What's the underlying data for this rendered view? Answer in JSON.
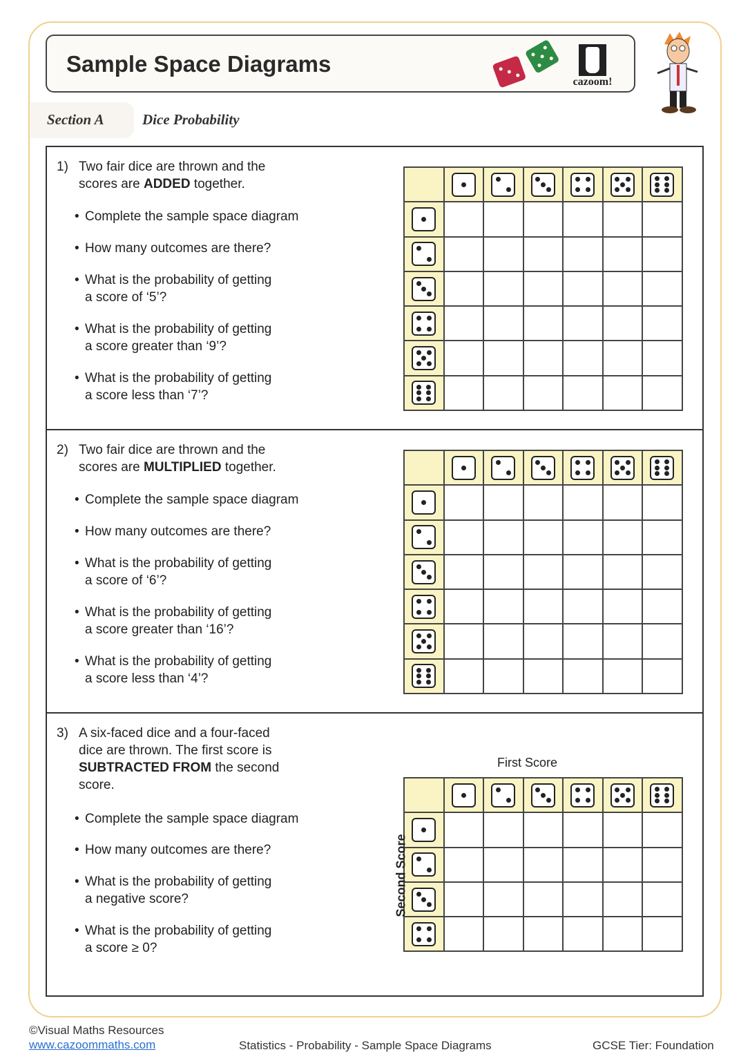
{
  "header": {
    "title": "Sample Space Diagrams",
    "logo_text": "cazoom!",
    "section_label": "Section A",
    "section_title": "Dice Probability"
  },
  "questions": [
    {
      "number": "1)",
      "lines": [
        [
          "Two fair dice are thrown and the",
          "",
          ""
        ],
        [
          "scores are ",
          "ADDED",
          " together."
        ]
      ],
      "bullets": [
        [
          "Complete the sample space diagram",
          ""
        ],
        [
          "How many outcomes are there?",
          ""
        ],
        [
          "What is the probability of getting",
          "a score of ‘5’?"
        ],
        [
          "What is the probability of getting",
          "a score greater than ‘9’?"
        ],
        [
          "What is the probability of getting",
          "a score less than ‘7’?"
        ]
      ],
      "columns": [
        1,
        2,
        3,
        4,
        5,
        6
      ],
      "rows": [
        1,
        2,
        3,
        4,
        5,
        6
      ]
    },
    {
      "number": "2)",
      "lines": [
        [
          "Two fair dice are thrown and the",
          "",
          ""
        ],
        [
          "scores are ",
          "MULTIPLIED",
          " together."
        ]
      ],
      "bullets": [
        [
          "Complete the sample space diagram",
          ""
        ],
        [
          "How many outcomes are there?",
          ""
        ],
        [
          "What is the probability of getting",
          "a score of ‘6’?"
        ],
        [
          "What is the probability of getting",
          "a score greater than ‘16’?"
        ],
        [
          "What is the probability of getting",
          "a score less than ‘4’?"
        ]
      ],
      "columns": [
        1,
        2,
        3,
        4,
        5,
        6
      ],
      "rows": [
        1,
        2,
        3,
        4,
        5,
        6
      ]
    },
    {
      "number": "3)",
      "lines": [
        [
          "A six-faced dice and a four-faced",
          "",
          ""
        ],
        [
          "dice are thrown. The first score is",
          "",
          ""
        ],
        [
          "",
          "SUBTRACTED FROM",
          " the second"
        ],
        [
          "score.",
          "",
          ""
        ]
      ],
      "bullets": [
        [
          "Complete the sample space diagram",
          ""
        ],
        [
          "How many outcomes are there?",
          ""
        ],
        [
          "What is the probability of getting",
          "a negative score?"
        ],
        [
          "What is the probability of getting",
          "a score ≥ 0?"
        ]
      ],
      "columns": [
        1,
        2,
        3,
        4,
        5,
        6
      ],
      "rows": [
        1,
        2,
        3,
        4
      ],
      "x_label": "First Score",
      "y_label": "Second Score"
    }
  ],
  "footer": {
    "copyright": "©Visual Maths Resources",
    "link": "www.cazoommaths.com",
    "topic": "Statistics - Probability - Sample Space Diagrams",
    "tier": "GCSE Tier: Foundation"
  },
  "colors": {
    "frame": "#f1d08c",
    "header_cell": "#faf4c5",
    "link": "#2a6fcf"
  }
}
